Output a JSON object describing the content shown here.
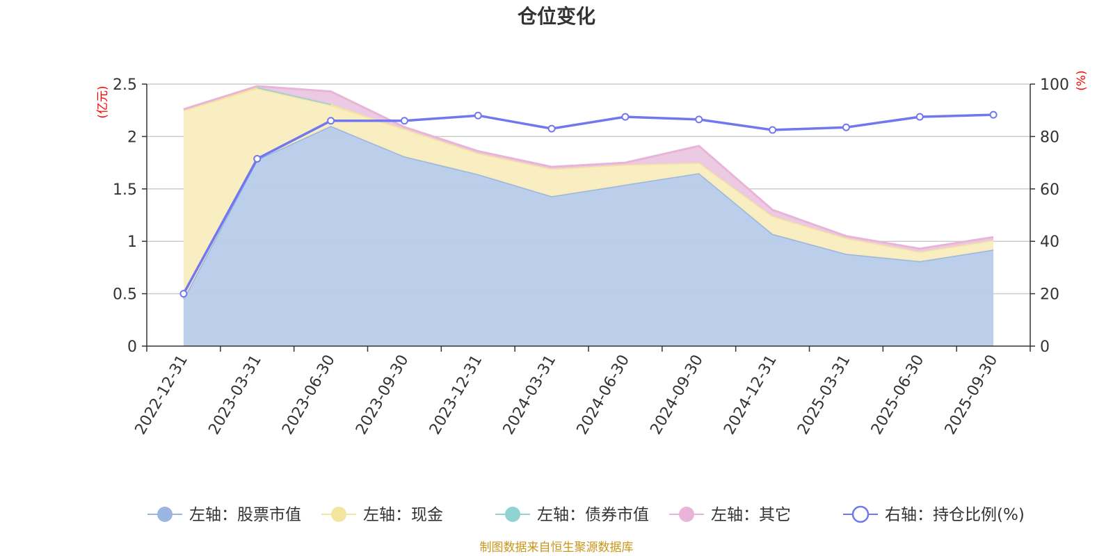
{
  "chart_data": {
    "type": "area",
    "title": "仓位变化",
    "categories": [
      "2022-12-31",
      "2023-03-31",
      "2023-06-30",
      "2023-09-30",
      "2023-12-31",
      "2024-03-31",
      "2024-06-30",
      "2024-09-30",
      "2024-12-31",
      "2025-03-31",
      "2025-06-30",
      "2025-09-30"
    ],
    "left_axis": {
      "unit": "(亿元)",
      "min": 0,
      "max": 2.5,
      "ticks": [
        "0",
        "0.5",
        "1",
        "1.5",
        "2",
        "2.5"
      ]
    },
    "right_axis": {
      "unit": "(%)",
      "min": 0,
      "max": 100,
      "ticks": [
        "0",
        "20",
        "40",
        "60",
        "80",
        "100"
      ]
    },
    "stacked_series": [
      {
        "name": "左轴：股票市值",
        "color": "#9ab5e0",
        "fill": "#b8cce9",
        "values": [
          0.45,
          1.78,
          2.1,
          1.81,
          1.64,
          1.43,
          1.54,
          1.65,
          1.07,
          0.88,
          0.81,
          0.92
        ]
      },
      {
        "name": "左轴：现金",
        "color": "#f5e49e",
        "fill": "#f9edbe",
        "values": [
          1.8,
          0.68,
          0.2,
          0.26,
          0.2,
          0.26,
          0.19,
          0.1,
          0.17,
          0.15,
          0.09,
          0.09
        ]
      },
      {
        "name": "左轴：债券市值",
        "color": "#8fd3d3",
        "fill": "#b6e3e3",
        "values": [
          0,
          0.01,
          0.01,
          0,
          0,
          0,
          0,
          0,
          0,
          0,
          0,
          0
        ]
      },
      {
        "name": "左轴：其它",
        "color": "#e8b4d8",
        "fill": "#ecc7e2",
        "values": [
          0.01,
          0.01,
          0.12,
          0.02,
          0.02,
          0.02,
          0.02,
          0.16,
          0.06,
          0.02,
          0.03,
          0.03
        ]
      }
    ],
    "line_series": {
      "name": "右轴：持仓比例(%)",
      "color": "#7177ee",
      "values": [
        20,
        71.5,
        86,
        86,
        88,
        83,
        87.5,
        86.5,
        82.5,
        83.5,
        87.5,
        88.3
      ]
    },
    "source": "制图数据来自恒生聚源数据库"
  }
}
